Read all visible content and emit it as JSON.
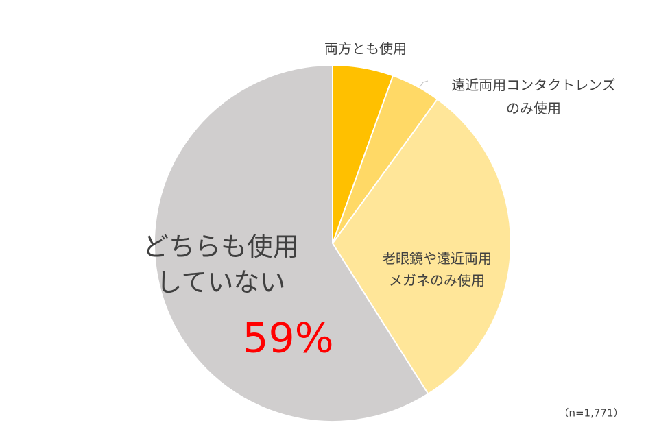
{
  "chart_data": {
    "type": "pie",
    "categories": [
      "両方とも使用",
      "遠近両用コンタクトレンズ\nのみ使用",
      "老眼鏡や遠近両用\nメガネのみ使用",
      "どちらも使用\nしていない"
    ],
    "values": [
      5.5,
      4.5,
      31,
      59
    ],
    "value_labels": [
      null,
      null,
      null,
      "59%"
    ],
    "colors": [
      "#FFC000",
      "#FFD966",
      "#FFE699",
      "#D0CECE"
    ],
    "note": "（n=1,771）"
  }
}
